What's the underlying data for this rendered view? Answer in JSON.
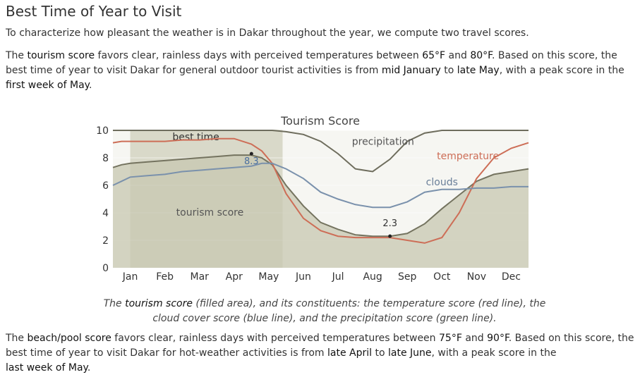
{
  "heading": "Best Time of Year to Visit",
  "intro": "To characterize how pleasant the weather is in Dakar throughout the year, we compute two travel scores.",
  "tourism_paragraph": {
    "p1": "The ",
    "term": "tourism score",
    "p2": " favors clear, rainless days with perceived temperatures between ",
    "t1": "65°F",
    "p3": " and ",
    "t2": "80°F",
    "p4": ". Based on this score, the best time of year to visit Dakar for general outdoor tourist activities is from ",
    "start": "mid January",
    "p5": " to ",
    "end": "late May",
    "p6": ", with a peak score in the ",
    "peak": "first week of May",
    "p7": "."
  },
  "caption": {
    "c1": "The ",
    "term": "tourism score",
    "c2": " (filled area), and its constituents: the temperature score (red line), the cloud cover score (blue line), and the precipitation score (green line)."
  },
  "beach_paragraph": {
    "p1": "The ",
    "term": "beach/pool score",
    "p2": " favors clear, rainless days with perceived temperatures between ",
    "t1": "75°F",
    "p3": " and ",
    "t2": "90°F",
    "p4": ". Based on this score, the best time of year to visit Dakar for hot-weather activities is from ",
    "start": "late April",
    "p5": " to ",
    "end": "late June",
    "p6": ", with a peak score in the ",
    "peak": "last week of May",
    "p7": "."
  },
  "chart_data": {
    "type": "area",
    "title": "Tourism Score",
    "ylim": [
      0,
      10
    ],
    "yticks": [
      0,
      2,
      4,
      6,
      8,
      10
    ],
    "months": [
      "Jan",
      "Feb",
      "Mar",
      "Apr",
      "May",
      "Jun",
      "Jul",
      "Aug",
      "Sep",
      "Oct",
      "Nov",
      "Dec"
    ],
    "best_time": {
      "label": "best time",
      "start_month": 0.5,
      "end_month": 4.9
    },
    "x": [
      0,
      0.25,
      0.5,
      1,
      1.5,
      2,
      2.5,
      3,
      3.5,
      4,
      4.3,
      4.6,
      5,
      5.5,
      6,
      6.5,
      7,
      7.5,
      8,
      8.5,
      9,
      9.5,
      10,
      10.5,
      11,
      11.5,
      12
    ],
    "series": [
      {
        "name": "tourism score",
        "key": "tourism",
        "label_text": "tourism score",
        "color": "#74735f",
        "values": [
          7.3,
          7.5,
          7.6,
          7.7,
          7.8,
          7.9,
          8.0,
          8.1,
          8.2,
          8.2,
          8.0,
          7.5,
          6.0,
          4.5,
          3.3,
          2.8,
          2.4,
          2.3,
          2.3,
          2.5,
          3.2,
          4.3,
          5.3,
          6.3,
          6.8,
          7.0,
          7.2
        ]
      },
      {
        "name": "temperature",
        "key": "temperature",
        "label_text": "temperature",
        "color": "#cd6e57",
        "values": [
          9.1,
          9.2,
          9.2,
          9.2,
          9.2,
          9.3,
          9.3,
          9.4,
          9.4,
          9.0,
          8.5,
          7.6,
          5.4,
          3.6,
          2.7,
          2.3,
          2.2,
          2.2,
          2.2,
          2.0,
          1.8,
          2.2,
          4.0,
          6.5,
          8.0,
          8.7,
          9.1
        ]
      },
      {
        "name": "clouds",
        "key": "clouds",
        "label_text": "clouds",
        "color": "#7a91ac",
        "values": [
          6.0,
          6.3,
          6.6,
          6.7,
          6.8,
          7.0,
          7.1,
          7.2,
          7.3,
          7.4,
          7.6,
          7.6,
          7.2,
          6.5,
          5.5,
          5.0,
          4.6,
          4.4,
          4.4,
          4.8,
          5.5,
          5.7,
          5.7,
          5.8,
          5.8,
          5.9,
          5.9
        ]
      },
      {
        "name": "precipitation",
        "key": "precipitation",
        "label_text": "precipitation",
        "color": "#6e6d5d",
        "values": [
          10.0,
          10.0,
          10.0,
          10.0,
          10.0,
          10.0,
          10.0,
          10.0,
          10.0,
          10.0,
          10.0,
          10.0,
          9.9,
          9.7,
          9.2,
          8.3,
          7.2,
          7.0,
          7.9,
          9.2,
          9.8,
          10.0,
          10.0,
          10.0,
          10.0,
          10.0,
          10.0
        ]
      }
    ],
    "annotations": [
      {
        "text": "8.3",
        "x": 4.0,
        "y": 8.3
      },
      {
        "text": "2.3",
        "x": 8.0,
        "y": 2.3
      }
    ]
  }
}
